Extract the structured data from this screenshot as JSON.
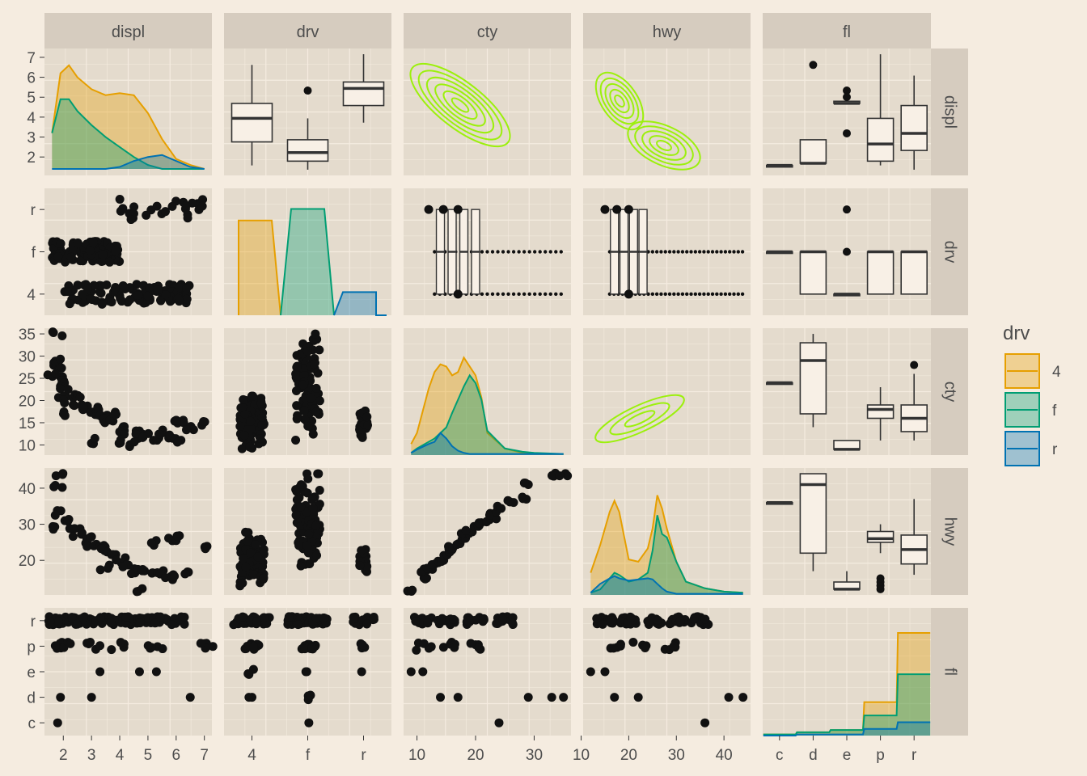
{
  "chart_data": {
    "type": "scatter-matrix",
    "variables": [
      "displ",
      "drv",
      "cty",
      "hwy",
      "fl"
    ],
    "legend": {
      "title": "drv",
      "position": "right",
      "entries": [
        {
          "label": "4",
          "color": "#e69f00"
        },
        {
          "label": "f",
          "color": "#009e73"
        },
        {
          "label": "r",
          "color": "#0072b2"
        }
      ]
    },
    "colors": {
      "contour": "#9cf00c",
      "panel_bg": "#e4dbcd",
      "strip_bg": "#d6ccbf",
      "plot_bg": "#f5ece0",
      "box_fill": "#f8f0e6"
    },
    "axes": {
      "displ": {
        "range": [
          1.6,
          7.0
        ],
        "ticks": [
          "2",
          "3",
          "4",
          "5",
          "6",
          "7"
        ],
        "tick_values": [
          2,
          3,
          4,
          5,
          6,
          7
        ]
      },
      "drv": {
        "categories": [
          "4",
          "f",
          "r"
        ]
      },
      "cty": {
        "range": [
          9,
          35
        ],
        "x_ticks": [
          "10",
          "20",
          "30"
        ],
        "y_ticks": [
          "10",
          "15",
          "20",
          "25",
          "30",
          "35"
        ]
      },
      "hwy": {
        "range": [
          12,
          44
        ],
        "x_ticks": [
          "10",
          "20",
          "30",
          "40"
        ],
        "y_ticks": [
          "20",
          "30",
          "40"
        ]
      },
      "fl": {
        "categories": [
          "c",
          "d",
          "e",
          "p",
          "r"
        ]
      }
    },
    "densities": {
      "displ": {
        "x": [
          1.6,
          1.9,
          2.2,
          2.5,
          3.0,
          3.5,
          4.0,
          4.5,
          5.0,
          5.5,
          6.0,
          6.5,
          7.0
        ],
        "4": [
          3.2,
          6.2,
          6.6,
          6.0,
          5.4,
          5.1,
          5.2,
          5.1,
          4.2,
          2.9,
          1.9,
          1.6,
          1.4
        ],
        "f": [
          3.2,
          4.9,
          4.9,
          4.3,
          3.6,
          3.0,
          2.5,
          2.0,
          1.6,
          1.4,
          1.4,
          1.4,
          1.4
        ],
        "r": [
          1.4,
          1.4,
          1.4,
          1.4,
          1.4,
          1.4,
          1.5,
          1.8,
          2.0,
          2.1,
          1.8,
          1.5,
          1.4
        ]
      },
      "drv": {
        "4": 0.82,
        "f": 0.92,
        "r": 0.2
      },
      "cty": {
        "x": [
          9,
          10,
          12,
          13,
          14,
          15,
          16,
          17,
          18,
          19,
          20,
          21,
          22,
          25,
          28,
          30,
          35
        ],
        "4": [
          0.1,
          0.2,
          0.6,
          0.75,
          0.82,
          0.8,
          0.72,
          0.75,
          0.88,
          0.8,
          0.72,
          0.52,
          0.2,
          0.06,
          0.02,
          0.01,
          0.01
        ],
        "f": [
          0.02,
          0.06,
          0.12,
          0.15,
          0.2,
          0.25,
          0.38,
          0.5,
          0.62,
          0.72,
          0.65,
          0.5,
          0.22,
          0.06,
          0.03,
          0.02,
          0.01
        ],
        "r": [
          0.02,
          0.05,
          0.1,
          0.12,
          0.2,
          0.15,
          0.08,
          0.04,
          0.02,
          0.01,
          0.01,
          0.01,
          0.01,
          0.01,
          0.01,
          0.01,
          0.01
        ]
      },
      "hwy": {
        "x": [
          12,
          14,
          16,
          17,
          18,
          20,
          22,
          24,
          25,
          26,
          27,
          28,
          30,
          32,
          36,
          40,
          44
        ],
        "4": [
          0.2,
          0.45,
          0.75,
          0.85,
          0.75,
          0.32,
          0.3,
          0.42,
          0.6,
          0.9,
          0.78,
          0.6,
          0.3,
          0.12,
          0.06,
          0.03,
          0.02
        ],
        "f": [
          0.02,
          0.05,
          0.15,
          0.2,
          0.18,
          0.12,
          0.14,
          0.2,
          0.4,
          0.72,
          0.55,
          0.52,
          0.3,
          0.12,
          0.06,
          0.03,
          0.02
        ],
        "r": [
          0.02,
          0.1,
          0.15,
          0.17,
          0.15,
          0.13,
          0.14,
          0.15,
          0.14,
          0.1,
          0.06,
          0.03,
          0.01,
          0.01,
          0.01,
          0.01,
          0.01
        ]
      },
      "fl": {
        "categories": [
          "c",
          "d",
          "e",
          "p",
          "r"
        ],
        "4": [
          0.01,
          0.03,
          0.05,
          0.3,
          0.92
        ],
        "f": [
          0.01,
          0.03,
          0.05,
          0.18,
          0.55
        ],
        "r": [
          0.0,
          0.01,
          0.01,
          0.06,
          0.12
        ]
      }
    },
    "boxplots": {
      "drv_displ": [
        {
          "group": "4",
          "min": 1.8,
          "q1": 2.9,
          "median": 4.0,
          "q3": 4.7,
          "max": 6.5,
          "outliers": []
        },
        {
          "group": "f",
          "min": 1.6,
          "q1": 2.0,
          "median": 2.4,
          "q3": 3.0,
          "max": 4.0,
          "outliers": [
            5.3
          ]
        },
        {
          "group": "r",
          "min": 3.8,
          "q1": 4.6,
          "median": 5.4,
          "q3": 5.7,
          "max": 7.0,
          "outliers": []
        }
      ],
      "fl_displ": [
        {
          "group": "c",
          "min": 1.8,
          "q1": 1.8,
          "median": 1.8,
          "q3": 1.8,
          "max": 1.8,
          "outliers": []
        },
        {
          "group": "d",
          "min": 1.9,
          "q1": 1.9,
          "median": 1.9,
          "q3": 3.0,
          "max": 3.0,
          "outliers": [
            6.5
          ]
        },
        {
          "group": "e",
          "min": 4.7,
          "q1": 4.7,
          "median": 4.7,
          "q3": 4.8,
          "max": 4.8,
          "outliers": [
            5.3,
            5.0,
            3.3
          ]
        },
        {
          "group": "p",
          "min": 1.8,
          "q1": 2.0,
          "median": 2.8,
          "q3": 4.0,
          "max": 7.0,
          "outliers": []
        },
        {
          "group": "r",
          "min": 1.6,
          "q1": 2.5,
          "median": 3.3,
          "q3": 4.6,
          "max": 6.0,
          "outliers": []
        }
      ],
      "fl_cty": [
        {
          "group": "c",
          "min": 24,
          "q1": 24,
          "median": 24,
          "q3": 24,
          "max": 24,
          "outliers": []
        },
        {
          "group": "d",
          "min": 14,
          "q1": 17,
          "median": 29,
          "q3": 33,
          "max": 35,
          "outliers": []
        },
        {
          "group": "e",
          "min": 9,
          "q1": 9,
          "median": 9,
          "q3": 11,
          "max": 11,
          "outliers": []
        },
        {
          "group": "p",
          "min": 11,
          "q1": 16,
          "median": 18,
          "q3": 19,
          "max": 23,
          "outliers": []
        },
        {
          "group": "r",
          "min": 11,
          "q1": 13,
          "median": 16,
          "q3": 19,
          "max": 26,
          "outliers": [
            28
          ]
        }
      ],
      "fl_hwy": [
        {
          "group": "c",
          "min": 36,
          "q1": 36,
          "median": 36,
          "q3": 36,
          "max": 36,
          "outliers": []
        },
        {
          "group": "d",
          "min": 17,
          "q1": 22,
          "median": 41,
          "q3": 44,
          "max": 44,
          "outliers": []
        },
        {
          "group": "e",
          "min": 12,
          "q1": 12,
          "median": 12,
          "q3": 14,
          "max": 17,
          "outliers": []
        },
        {
          "group": "p",
          "min": 22,
          "q1": 25,
          "median": 26,
          "q3": 28,
          "max": 30,
          "outliers": [
            12,
            13,
            14,
            15
          ]
        },
        {
          "group": "r",
          "min": 16,
          "q1": 19,
          "median": 23,
          "q3": 27,
          "max": 37,
          "outliers": []
        }
      ],
      "fl_drv": [
        {
          "group": "c",
          "q1": "f",
          "median": "f",
          "q3": "f"
        },
        {
          "group": "d",
          "q1": "4",
          "median": "f",
          "q3": "f"
        },
        {
          "group": "e",
          "q1": "4",
          "median": "4",
          "q3": "4",
          "outliers": [
            "f",
            "r"
          ]
        },
        {
          "group": "p",
          "q1": "4",
          "median": "f",
          "q3": "f"
        },
        {
          "group": "r",
          "q1": "4",
          "median": "f",
          "q3": "f"
        }
      ]
    },
    "contours": {
      "cty_displ": [
        {
          "cx": 18,
          "cy": 4.8
        },
        {
          "cx": 13,
          "cy": 5.5
        }
      ],
      "hwy_displ": [
        {
          "cx": 17,
          "cy": 4.7
        },
        {
          "cx": 26,
          "cy": 2.6
        }
      ],
      "hwy_cty": [
        {
          "cx": 24,
          "cy": 17
        }
      ]
    },
    "scatter": {
      "displ_cty": [
        [
          1.8,
          28
        ],
        [
          1.8,
          35
        ],
        [
          1.8,
          29
        ],
        [
          1.9,
          25
        ],
        [
          2.0,
          24
        ],
        [
          2.0,
          21
        ],
        [
          2.2,
          20
        ],
        [
          2.4,
          21
        ],
        [
          2.5,
          19
        ],
        [
          2.7,
          18
        ],
        [
          2.8,
          19
        ],
        [
          3.0,
          17
        ],
        [
          3.1,
          18
        ],
        [
          3.3,
          17
        ],
        [
          3.5,
          16
        ],
        [
          3.6,
          15
        ],
        [
          3.8,
          17
        ],
        [
          4.0,
          14
        ],
        [
          4.2,
          13
        ],
        [
          4.6,
          13
        ],
        [
          4.7,
          12
        ],
        [
          5.0,
          12
        ],
        [
          5.3,
          11
        ],
        [
          5.4,
          13
        ],
        [
          5.7,
          12
        ],
        [
          6.0,
          11
        ],
        [
          6.2,
          15
        ],
        [
          6.5,
          14
        ],
        [
          7.0,
          15
        ],
        [
          4.4,
          10
        ],
        [
          4.0,
          11
        ],
        [
          2.2,
          17
        ],
        [
          1.6,
          26
        ],
        [
          2.0,
          23
        ],
        [
          3.0,
          11
        ],
        [
          5.9,
          16
        ]
      ],
      "hwy_cty": [
        [
          12,
          9
        ],
        [
          15,
          11
        ],
        [
          17,
          11
        ],
        [
          18,
          12
        ],
        [
          19,
          13
        ],
        [
          20,
          14
        ],
        [
          22,
          15
        ],
        [
          23,
          16
        ],
        [
          24,
          16
        ],
        [
          25,
          17
        ],
        [
          26,
          18
        ],
        [
          27,
          18
        ],
        [
          28,
          19
        ],
        [
          29,
          20
        ],
        [
          30,
          21
        ],
        [
          31,
          22
        ],
        [
          32,
          23
        ],
        [
          33,
          23
        ],
        [
          35,
          24
        ],
        [
          36,
          26
        ],
        [
          37,
          28
        ],
        [
          41,
          29
        ],
        [
          44,
          33
        ],
        [
          44,
          35
        ]
      ],
      "displ_hwy": [
        [
          1.8,
          29
        ],
        [
          1.8,
          44
        ],
        [
          1.8,
          41
        ],
        [
          1.9,
          33
        ],
        [
          2.0,
          31
        ],
        [
          2.4,
          29
        ],
        [
          2.5,
          27
        ],
        [
          2.7,
          25
        ],
        [
          2.8,
          26
        ],
        [
          3.0,
          24
        ],
        [
          3.3,
          24
        ],
        [
          3.5,
          23
        ],
        [
          3.8,
          22
        ],
        [
          4.0,
          20
        ],
        [
          4.2,
          18
        ],
        [
          4.6,
          17
        ],
        [
          4.7,
          17
        ],
        [
          5.0,
          17
        ],
        [
          5.4,
          17
        ],
        [
          5.7,
          16
        ],
        [
          6.0,
          15
        ],
        [
          6.5,
          17
        ],
        [
          7.0,
          24
        ],
        [
          4.7,
          12
        ],
        [
          5.9,
          26
        ],
        [
          6.2,
          26
        ],
        [
          5.3,
          25
        ],
        [
          3.5,
          18
        ]
      ],
      "displ_fl": [
        [
          1.8,
          "r"
        ],
        [
          2.0,
          "r"
        ],
        [
          2.5,
          "r"
        ],
        [
          3.0,
          "r"
        ],
        [
          3.5,
          "r"
        ],
        [
          4.0,
          "r"
        ],
        [
          4.5,
          "r"
        ],
        [
          5.0,
          "r"
        ],
        [
          5.5,
          "r"
        ],
        [
          6.0,
          "r"
        ],
        [
          1.8,
          "p"
        ],
        [
          2.0,
          "p"
        ],
        [
          3.0,
          "p"
        ],
        [
          4.0,
          "p"
        ],
        [
          5.3,
          "p"
        ],
        [
          7.0,
          "p"
        ],
        [
          3.3,
          "e"
        ],
        [
          4.7,
          "e"
        ],
        [
          5.3,
          "e"
        ],
        [
          1.9,
          "d"
        ],
        [
          3.0,
          "d"
        ],
        [
          6.5,
          "d"
        ],
        [
          1.8,
          "c"
        ]
      ],
      "cty_fl": [
        [
          11,
          "r"
        ],
        [
          15,
          "r"
        ],
        [
          20,
          "r"
        ],
        [
          25,
          "r"
        ],
        [
          11,
          "p"
        ],
        [
          15,
          "p"
        ],
        [
          20,
          "p"
        ],
        [
          9,
          "e"
        ],
        [
          11,
          "e"
        ],
        [
          14,
          "d"
        ],
        [
          17,
          "d"
        ],
        [
          29,
          "d"
        ],
        [
          33,
          "d"
        ],
        [
          35,
          "d"
        ],
        [
          24,
          "c"
        ]
      ],
      "hwy_fl": [
        [
          15,
          "r"
        ],
        [
          20,
          "r"
        ],
        [
          25,
          "r"
        ],
        [
          30,
          "r"
        ],
        [
          35,
          "r"
        ],
        [
          17,
          "p"
        ],
        [
          22,
          "p"
        ],
        [
          28,
          "p"
        ],
        [
          12,
          "e"
        ],
        [
          15,
          "e"
        ],
        [
          17,
          "d"
        ],
        [
          22,
          "d"
        ],
        [
          41,
          "d"
        ],
        [
          44,
          "d"
        ],
        [
          36,
          "c"
        ]
      ]
    }
  }
}
